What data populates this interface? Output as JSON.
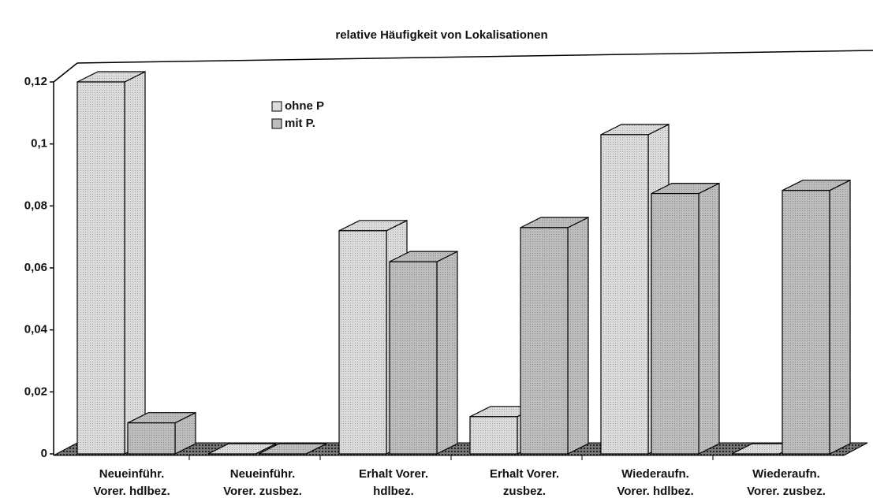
{
  "chart_data": {
    "type": "bar3d",
    "title": "relative Häufigkeit von Lokalisationen",
    "categories": [
      [
        "Neueinführ.",
        "Vorer. hdlbez."
      ],
      [
        "Neueinführ.",
        "Vorer. zusbez."
      ],
      [
        "Erhalt Vorer.",
        "hdlbez."
      ],
      [
        "Erhalt Vorer.",
        "zusbez."
      ],
      [
        "Wiederaufn.",
        "Vorer. hdlbez."
      ],
      [
        "Wiederaufn.",
        "Vorer. zusbez."
      ]
    ],
    "series": [
      {
        "name": "ohne P",
        "color": "#dcdcdc",
        "values": [
          0.12,
          0,
          0.072,
          0.012,
          0.103,
          0
        ]
      },
      {
        "name": "mit P.",
        "color": "#bdbdbd",
        "values": [
          0.01,
          0,
          0.062,
          0.073,
          0.084,
          0.085
        ]
      }
    ],
    "ylim": [
      0,
      0.12
    ],
    "yticks": [
      0,
      {
        "value": 0.02,
        "label": "0,02"
      },
      {
        "value": 0.04,
        "label": "0,04"
      },
      {
        "value": 0.06,
        "label": "0,06"
      },
      {
        "value": 0.08,
        "label": "0,08"
      },
      {
        "value": 0.1,
        "label": "0,1"
      },
      {
        "value": 0.12,
        "label": "0,12"
      }
    ],
    "legend": "top-left"
  }
}
